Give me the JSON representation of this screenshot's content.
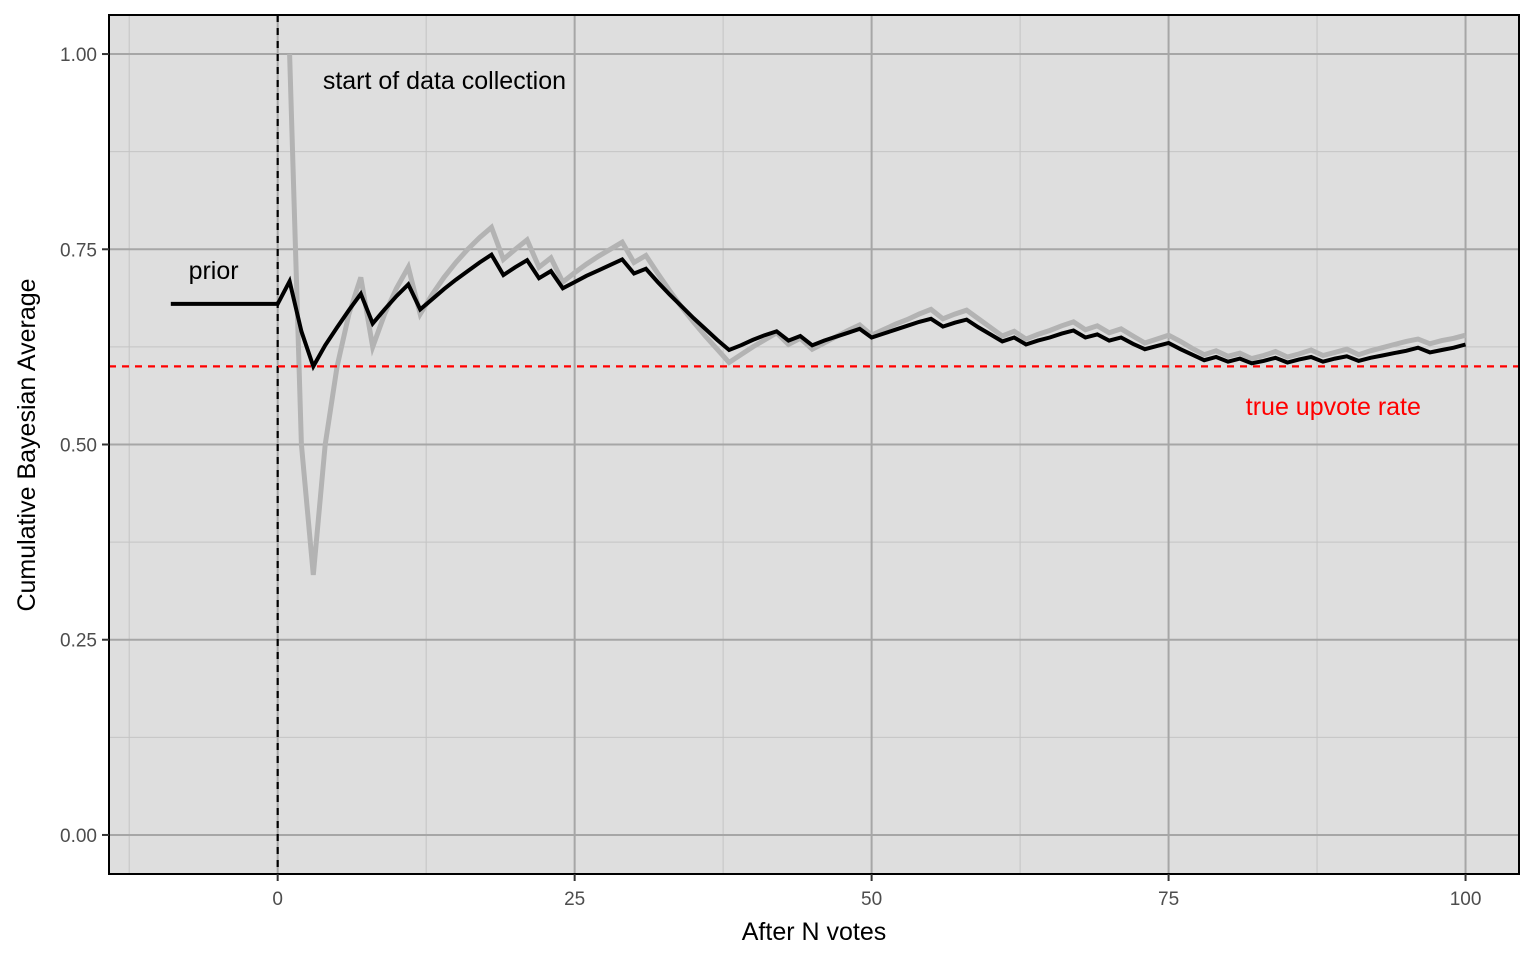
{
  "chart_data": {
    "type": "line",
    "xlabel": "After N votes",
    "ylabel": "Cumulative Bayesian Average",
    "xlim": [
      -14.2,
      104.5
    ],
    "ylim": [
      -0.05,
      1.05
    ],
    "x_ticks": [
      0,
      25,
      50,
      75,
      100
    ],
    "y_ticks": [
      0.0,
      0.25,
      0.5,
      0.75,
      1.0
    ],
    "x_tick_labels": [
      "0",
      "25",
      "50",
      "75",
      "100"
    ],
    "y_tick_labels": [
      "0.00",
      "0.25",
      "0.50",
      "0.75",
      "1.00"
    ],
    "grid": true,
    "background": "#dedede",
    "series": [
      {
        "color": "#b3b3b3",
        "x": [
          1,
          2,
          3,
          4,
          5,
          6,
          7,
          8,
          9,
          10,
          11,
          12,
          13,
          14,
          15,
          16,
          17,
          18,
          19,
          20,
          21,
          22,
          23,
          24,
          25,
          26,
          27,
          28,
          29,
          30,
          31,
          32,
          33,
          34,
          35,
          36,
          37,
          38,
          39,
          40,
          41,
          42,
          43,
          44,
          45,
          46,
          47,
          48,
          49,
          50,
          51,
          52,
          53,
          54,
          55,
          56,
          57,
          58,
          59,
          60,
          61,
          62,
          63,
          64,
          65,
          66,
          67,
          68,
          69,
          70,
          71,
          72,
          73,
          74,
          75,
          76,
          77,
          78,
          79,
          80,
          81,
          82,
          83,
          84,
          85,
          86,
          87,
          88,
          89,
          90,
          91,
          92,
          93,
          94,
          95,
          96,
          97,
          98,
          99,
          100
        ],
        "values": [
          1.0,
          0.5,
          0.333,
          0.5,
          0.6,
          0.667,
          0.714,
          0.625,
          0.667,
          0.7,
          0.727,
          0.667,
          0.692,
          0.714,
          0.733,
          0.75,
          0.765,
          0.778,
          0.737,
          0.75,
          0.762,
          0.727,
          0.739,
          0.708,
          0.72,
          0.731,
          0.741,
          0.75,
          0.759,
          0.733,
          0.742,
          0.719,
          0.697,
          0.676,
          0.657,
          0.639,
          0.622,
          0.605,
          0.615,
          0.625,
          0.634,
          0.643,
          0.628,
          0.636,
          0.622,
          0.63,
          0.638,
          0.646,
          0.653,
          0.64,
          0.647,
          0.654,
          0.66,
          0.667,
          0.673,
          0.661,
          0.667,
          0.672,
          0.661,
          0.65,
          0.639,
          0.645,
          0.635,
          0.641,
          0.646,
          0.652,
          0.657,
          0.647,
          0.652,
          0.643,
          0.648,
          0.639,
          0.63,
          0.635,
          0.64,
          0.632,
          0.623,
          0.615,
          0.62,
          0.613,
          0.617,
          0.61,
          0.614,
          0.619,
          0.612,
          0.616,
          0.621,
          0.614,
          0.618,
          0.622,
          0.615,
          0.62,
          0.624,
          0.628,
          0.632,
          0.635,
          0.629,
          0.633,
          0.636,
          0.64
        ]
      },
      {
        "color": "#000000",
        "x": [
          -9,
          0,
          1,
          2,
          3,
          4,
          5,
          6,
          7,
          8,
          9,
          10,
          11,
          12,
          13,
          14,
          15,
          16,
          17,
          18,
          19,
          20,
          21,
          22,
          23,
          24,
          25,
          26,
          27,
          28,
          29,
          30,
          31,
          32,
          33,
          34,
          35,
          36,
          37,
          38,
          39,
          40,
          41,
          42,
          43,
          44,
          45,
          46,
          47,
          48,
          49,
          50,
          51,
          52,
          53,
          54,
          55,
          56,
          57,
          58,
          59,
          60,
          61,
          62,
          63,
          64,
          65,
          66,
          67,
          68,
          69,
          70,
          71,
          72,
          73,
          74,
          75,
          76,
          77,
          78,
          79,
          80,
          81,
          82,
          83,
          84,
          85,
          86,
          87,
          88,
          89,
          90,
          91,
          92,
          93,
          94,
          95,
          96,
          97,
          98,
          99,
          100
        ],
        "values": [
          0.68,
          0.68,
          0.709,
          0.645,
          0.6,
          0.627,
          0.65,
          0.672,
          0.693,
          0.655,
          0.673,
          0.69,
          0.705,
          0.673,
          0.686,
          0.699,
          0.711,
          0.722,
          0.733,
          0.743,
          0.717,
          0.727,
          0.736,
          0.713,
          0.722,
          0.7,
          0.708,
          0.716,
          0.723,
          0.73,
          0.737,
          0.719,
          0.725,
          0.708,
          0.692,
          0.677,
          0.662,
          0.648,
          0.634,
          0.621,
          0.627,
          0.634,
          0.64,
          0.645,
          0.633,
          0.639,
          0.627,
          0.633,
          0.638,
          0.643,
          0.648,
          0.637,
          0.642,
          0.647,
          0.652,
          0.657,
          0.661,
          0.651,
          0.656,
          0.66,
          0.65,
          0.641,
          0.632,
          0.637,
          0.628,
          0.633,
          0.637,
          0.642,
          0.646,
          0.637,
          0.641,
          0.633,
          0.637,
          0.629,
          0.622,
          0.626,
          0.63,
          0.622,
          0.615,
          0.608,
          0.612,
          0.606,
          0.61,
          0.604,
          0.607,
          0.611,
          0.605,
          0.609,
          0.612,
          0.606,
          0.61,
          0.613,
          0.607,
          0.611,
          0.614,
          0.617,
          0.62,
          0.624,
          0.618,
          0.621,
          0.624,
          0.628
        ]
      }
    ],
    "reference_lines": [
      {
        "orientation": "vertical",
        "value": 0,
        "style": "dashed",
        "color": "#000000"
      },
      {
        "orientation": "horizontal",
        "value": 0.6,
        "style": "dashed",
        "color": "#ff0000"
      }
    ],
    "annotations": [
      {
        "text": "start of data collection",
        "x": 3.8,
        "y": 0.955,
        "color": "#000000"
      },
      {
        "text": "prior",
        "x": -7.5,
        "y": 0.712,
        "color": "#000000"
      },
      {
        "text": "true upvote rate",
        "x": 81.5,
        "y": 0.538,
        "color": "#ff0000"
      }
    ]
  }
}
